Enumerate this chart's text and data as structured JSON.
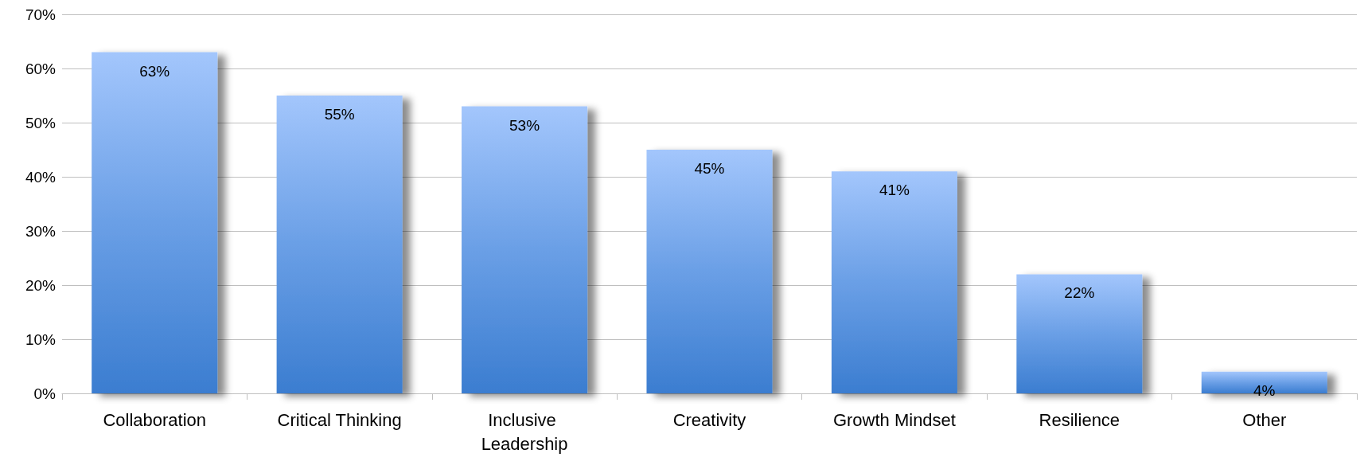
{
  "chart_data": {
    "type": "bar",
    "categories": [
      "Collaboration",
      "Critical Thinking",
      "Inclusive Leadership",
      "Creativity",
      "Growth Mindset",
      "Resilience",
      "Other"
    ],
    "values": [
      63,
      55,
      53,
      45,
      41,
      22,
      4
    ],
    "value_labels": [
      "63%",
      "55%",
      "53%",
      "45%",
      "41%",
      "22%",
      "4%"
    ],
    "color": "#6a9fe6",
    "ylim": [
      0,
      70
    ],
    "yticks": [
      {
        "value": 0,
        "label": "0%"
      },
      {
        "value": 10,
        "label": "10%"
      },
      {
        "value": 20,
        "label": "20%"
      },
      {
        "value": 30,
        "label": "30%"
      },
      {
        "value": 40,
        "label": "40%"
      },
      {
        "value": 50,
        "label": "50%"
      },
      {
        "value": 60,
        "label": "60%"
      },
      {
        "value": 70,
        "label": "70%"
      }
    ],
    "grid": "y"
  }
}
